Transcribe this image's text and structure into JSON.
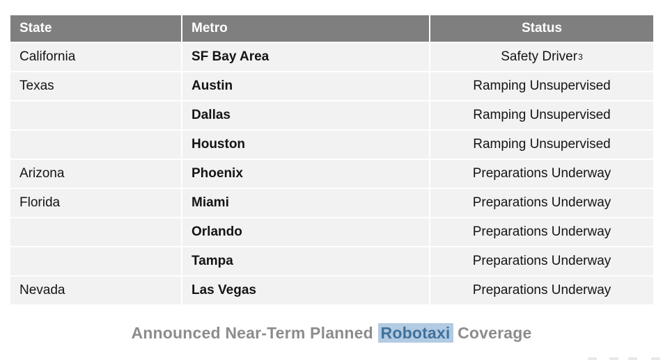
{
  "table": {
    "headers": [
      {
        "label": "State"
      },
      {
        "label": "Metro"
      },
      {
        "label": "Status"
      }
    ],
    "rows": [
      {
        "state": "California",
        "metro": "SF Bay Area",
        "status": "Safety Driver",
        "status_sup": "3"
      },
      {
        "state": "Texas",
        "metro": "Austin",
        "status": "Ramping Unsupervised",
        "status_sup": ""
      },
      {
        "state": "",
        "metro": "Dallas",
        "status": "Ramping Unsupervised",
        "status_sup": ""
      },
      {
        "state": "",
        "metro": "Houston",
        "status": "Ramping Unsupervised",
        "status_sup": ""
      },
      {
        "state": "Arizona",
        "metro": "Phoenix",
        "status": "Preparations Underway",
        "status_sup": ""
      },
      {
        "state": "Florida",
        "metro": "Miami",
        "status": "Preparations Underway",
        "status_sup": ""
      },
      {
        "state": "",
        "metro": "Orlando",
        "status": "Preparations Underway",
        "status_sup": ""
      },
      {
        "state": "",
        "metro": "Tampa",
        "status": "Preparations Underway",
        "status_sup": ""
      },
      {
        "state": "Nevada",
        "metro": "Las Vegas",
        "status": "Preparations Underway",
        "status_sup": ""
      }
    ]
  },
  "caption": {
    "prefix": "Announced Near-Term Planned ",
    "highlight": "Robotaxi",
    "suffix": " Coverage"
  },
  "colors": {
    "header_bg": "#7f7f7f",
    "header_text": "#ffffff",
    "row_bg": "#f2f2f2",
    "body_text": "#141414",
    "caption_text": "#8c8c8c",
    "highlight_bg": "#b2cbe2",
    "highlight_text": "#41719c"
  }
}
